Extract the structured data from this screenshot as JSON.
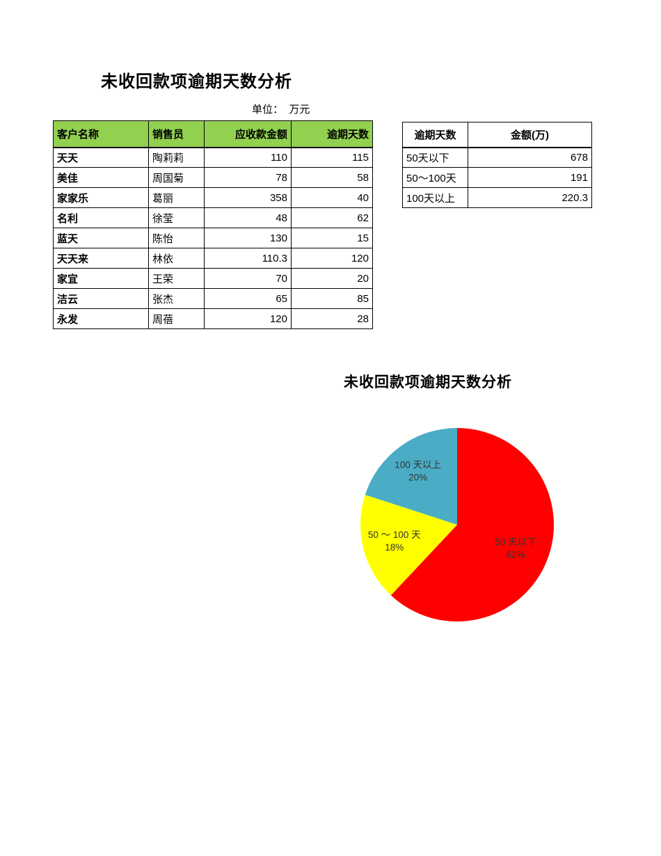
{
  "page": {
    "title": "未收回款项逾期天数分析",
    "unit_label": "单位：  万元",
    "background": "#ffffff"
  },
  "main_table": {
    "header_bg": "#92d050",
    "headers": [
      {
        "label": "客户名称",
        "align": "left"
      },
      {
        "label": "销售员",
        "align": "left"
      },
      {
        "label": "应收款金额",
        "align": "right"
      },
      {
        "label": "逾期天数",
        "align": "right"
      }
    ],
    "rows": [
      {
        "customer": "天天",
        "salesperson": "陶莉莉",
        "receivable": "110",
        "overdue_days": "115"
      },
      {
        "customer": "美佳",
        "salesperson": "周国菊",
        "receivable": "78",
        "overdue_days": "58"
      },
      {
        "customer": "家家乐",
        "salesperson": "葛丽",
        "receivable": "358",
        "overdue_days": "40"
      },
      {
        "customer": "名利",
        "salesperson": "徐莹",
        "receivable": "48",
        "overdue_days": "62"
      },
      {
        "customer": "蓝天",
        "salesperson": "陈怡",
        "receivable": "130",
        "overdue_days": "15"
      },
      {
        "customer": "天天来",
        "salesperson": "林依",
        "receivable": "110.3",
        "overdue_days": "120"
      },
      {
        "customer": "家宜",
        "salesperson": "王荣",
        "receivable": "70",
        "overdue_days": "20"
      },
      {
        "customer": "洁云",
        "salesperson": "张杰",
        "receivable": "65",
        "overdue_days": "85"
      },
      {
        "customer": "永发",
        "salesperson": "周蓓",
        "receivable": "120",
        "overdue_days": "28"
      }
    ]
  },
  "summary_table": {
    "headers": [
      "逾期天数",
      "金额(万)"
    ],
    "rows": [
      {
        "bucket": "50天以下",
        "amount": "678"
      },
      {
        "bucket": "50～100天",
        "amount": "191"
      },
      {
        "bucket": "100天以上",
        "amount": "220.3"
      }
    ]
  },
  "chart_data": {
    "type": "pie",
    "title": "未收回款项逾期天数分析",
    "slices": [
      {
        "label": "50 天以下",
        "percent": 62,
        "value": 678,
        "color": "#ff0000"
      },
      {
        "label": "50 ～ 100 天",
        "percent": 18,
        "value": 191,
        "color": "#ffff00"
      },
      {
        "label": "100 天以上",
        "percent": 20,
        "value": 220.3,
        "color": "#4bacc6"
      }
    ],
    "start_at": "12-oclock",
    "direction": "clockwise",
    "legend": "none",
    "label_style": "name-and-percent-inside",
    "label_color": "#333333",
    "label_radius_factors": [
      0.65,
      0.67,
      0.69
    ]
  }
}
